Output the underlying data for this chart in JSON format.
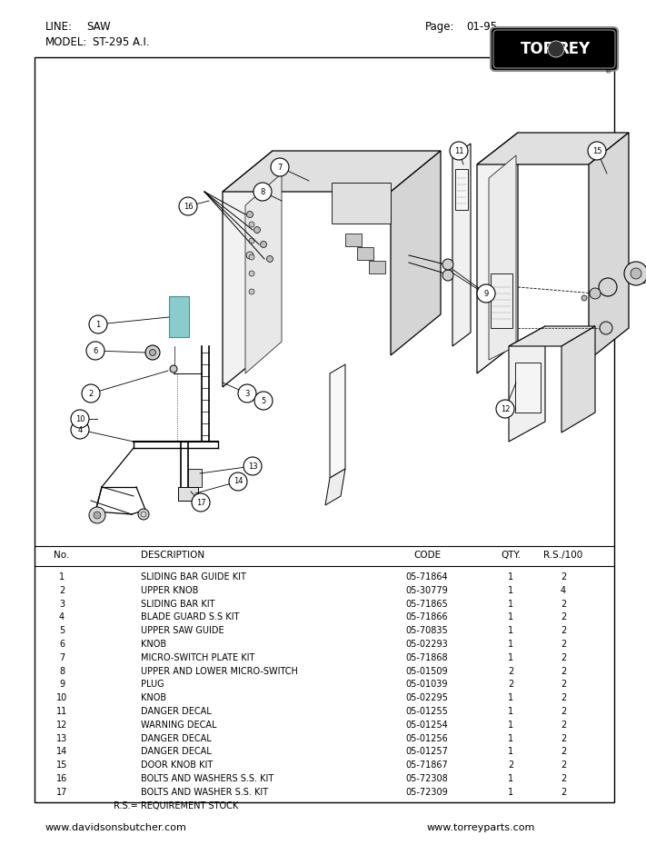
{
  "bg_color": "#ffffff",
  "line_text": "LINE:    SAW",
  "model_text": "MODEL:  ST-295 A.I.",
  "page_text": "Page:   01-95",
  "footer_left": "www.davidsonsbutcher.com",
  "footer_right": "www.torreyparts.com",
  "footer_note": "R.S.= REQUIREMENT STOCK",
  "table_headers": [
    "No.",
    "DESCRIPTION",
    "CODE",
    "QTY.",
    "R.S./100"
  ],
  "parts": [
    {
      "no": 1,
      "desc": "SLIDING BAR GUIDE KIT",
      "code": "05-71864",
      "qty": "1",
      "rs": "2"
    },
    {
      "no": 2,
      "desc": "UPPER KNOB",
      "code": "05-30779",
      "qty": "1",
      "rs": "4"
    },
    {
      "no": 3,
      "desc": "SLIDING BAR KIT",
      "code": "05-71865",
      "qty": "1",
      "rs": "2"
    },
    {
      "no": 4,
      "desc": "BLADE GUARD S.S KIT",
      "code": "05-71866",
      "qty": "1",
      "rs": "2"
    },
    {
      "no": 5,
      "desc": "UPPER SAW GUIDE",
      "code": "05-70835",
      "qty": "1",
      "rs": "2"
    },
    {
      "no": 6,
      "desc": "KNOB",
      "code": "05-02293",
      "qty": "1",
      "rs": "2"
    },
    {
      "no": 7,
      "desc": "MICRO-SWITCH PLATE KIT",
      "code": "05-71868",
      "qty": "1",
      "rs": "2"
    },
    {
      "no": 8,
      "desc": "UPPER AND LOWER MICRO-SWITCH",
      "code": "05-01509",
      "qty": "2",
      "rs": "2"
    },
    {
      "no": 9,
      "desc": "PLUG",
      "code": "05-01039",
      "qty": "2",
      "rs": "2"
    },
    {
      "no": 10,
      "desc": "KNOB",
      "code": "05-02295",
      "qty": "1",
      "rs": "2"
    },
    {
      "no": 11,
      "desc": "DANGER DECAL",
      "code": "05-01255",
      "qty": "1",
      "rs": "2"
    },
    {
      "no": 12,
      "desc": "WARNING DECAL",
      "code": "05-01254",
      "qty": "1",
      "rs": "2"
    },
    {
      "no": 13,
      "desc": "DANGER DECAL",
      "code": "05-01256",
      "qty": "1",
      "rs": "2"
    },
    {
      "no": 14,
      "desc": "DANGER DECAL",
      "code": "05-01257",
      "qty": "1",
      "rs": "2"
    },
    {
      "no": 15,
      "desc": "DOOR KNOB KIT",
      "code": "05-71867",
      "qty": "2",
      "rs": "2"
    },
    {
      "no": 16,
      "desc": "BOLTS AND WASHERS S.S. KIT",
      "code": "05-72308",
      "qty": "1",
      "rs": "2"
    },
    {
      "no": 17,
      "desc": "BOLTS AND WASHER S.S. KIT",
      "code": "05-72309",
      "qty": "1",
      "rs": "2"
    }
  ]
}
